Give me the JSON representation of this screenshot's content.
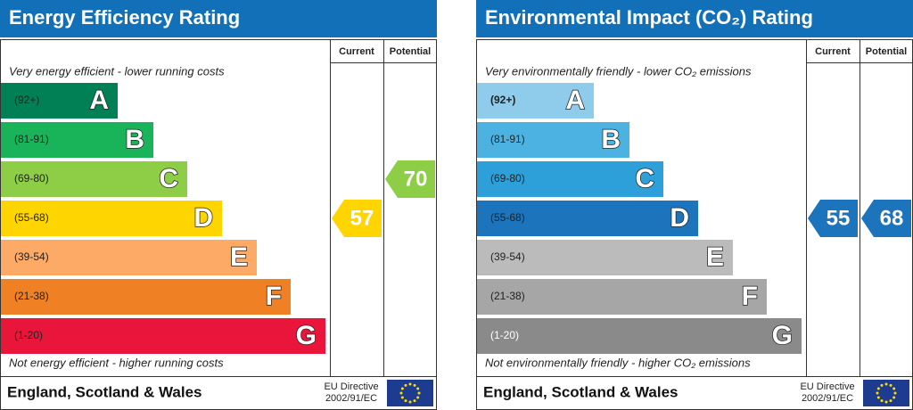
{
  "panels": [
    {
      "title": "Energy Efficiency Rating",
      "columns": [
        "Current",
        "Potential"
      ],
      "top_note": "Very energy efficient - lower running costs",
      "bottom_note": "Not energy efficient - higher running costs",
      "bands": [
        {
          "range": "(92+)",
          "letter": "A",
          "color": "#008054"
        },
        {
          "range": "(81-91)",
          "letter": "B",
          "color": "#19b459"
        },
        {
          "range": "(69-80)",
          "letter": "C",
          "color": "#8dce46"
        },
        {
          "range": "(55-68)",
          "letter": "D",
          "color": "#ffd500"
        },
        {
          "range": "(39-54)",
          "letter": "E",
          "color": "#fcaa65"
        },
        {
          "range": "(21-38)",
          "letter": "F",
          "color": "#ef8023"
        },
        {
          "range": "(1-20)",
          "letter": "G",
          "color": "#e9153b"
        }
      ],
      "current": 57,
      "potential": 70,
      "footer": {
        "region": "England, Scotland & Wales",
        "directive": [
          "EU Directive",
          "2002/91/EC"
        ]
      }
    },
    {
      "title": "Environmental Impact (CO₂) Rating",
      "columns": [
        "Current",
        "Potential"
      ],
      "top_note": "Very environmentally friendly - lower CO₂ emissions",
      "bottom_note": "Not environmentally friendly - higher CO₂ emissions",
      "bands": [
        {
          "range": "(92+)",
          "letter": "A",
          "color": "#8fcbea"
        },
        {
          "range": "(81-91)",
          "letter": "B",
          "color": "#4cb2e2"
        },
        {
          "range": "(69-80)",
          "letter": "C",
          "color": "#2d9fd9"
        },
        {
          "range": "(55-68)",
          "letter": "D",
          "color": "#1b74bc"
        },
        {
          "range": "(39-54)",
          "letter": "E",
          "color": "#bbbbbb"
        },
        {
          "range": "(21-38)",
          "letter": "F",
          "color": "#a6a6a6"
        },
        {
          "range": "(1-20)",
          "letter": "G",
          "color": "#8a8a8a"
        }
      ],
      "current": 55,
      "potential": 68,
      "footer": {
        "region": "England, Scotland & Wales",
        "directive": [
          "EU Directive",
          "2002/91/EC"
        ]
      }
    }
  ]
}
